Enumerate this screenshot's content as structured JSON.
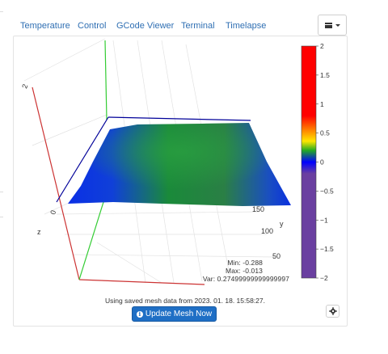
{
  "tabs": [
    "Temperature",
    "Control",
    "GCode Viewer",
    "Terminal",
    "Timelapse"
  ],
  "menu_icon": "hamburger-menu-icon",
  "plot": {
    "axes": {
      "x_label": "",
      "y_label": "y",
      "z_label": "z"
    },
    "y_ticks": [
      "50",
      "100",
      "150"
    ],
    "z_ticks": [
      "0",
      "2"
    ],
    "colorbar": {
      "ticks": [
        "2",
        "1.5",
        "1",
        "0.5",
        "0",
        "−0.5",
        "−1",
        "−1.5",
        "−2"
      ],
      "range": [
        -2,
        2
      ]
    },
    "colors": {
      "x_axis": "#cc3333",
      "y_axis": "#33cc33",
      "z_axis": "#000099"
    }
  },
  "stats": {
    "min": "Min: -0.288",
    "max": "Max: -0.013",
    "var": "Var: 0.27499999999999997"
  },
  "saved_text": "Using saved mesh data from 2023. 01. 18. 15:58:27.",
  "update_button": "Update Mesh Now",
  "settings_icon": "gear-icon"
}
